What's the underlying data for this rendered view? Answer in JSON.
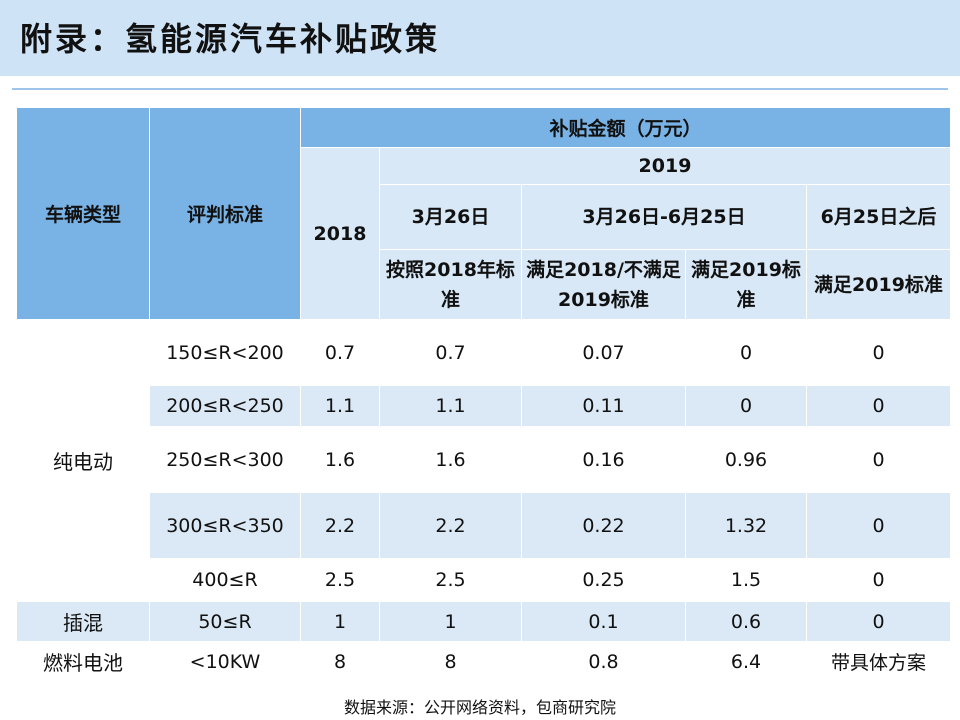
{
  "title": "附录：氢能源汽车补贴政策",
  "headers": {
    "vehicle_type": "车辆类型",
    "criteria": "评判标准",
    "subsidy_amount": "补贴金额（万元）",
    "y2018": "2018",
    "y2019": "2019",
    "mar26": "3月26日",
    "mar26_jun25": "3月26日-6月25日",
    "after_jun25": "6月25日之后",
    "by_2018_std": "按照2018年标准",
    "meets_2018_not_2019": "满足2018/不满足2019标准",
    "meets_2019_std": "满足2019标准",
    "meets_2019_std_b": "满足2019标准"
  },
  "categories": {
    "bev": "纯电动",
    "phev": "插混",
    "fcv": "燃料电池"
  },
  "rows": [
    {
      "criteria": "150≤R<200",
      "y2018": "0.7",
      "mar26": "0.7",
      "transition": "0.07",
      "meets2019": "0",
      "after": "0"
    },
    {
      "criteria": "200≤R<250",
      "y2018": "1.1",
      "mar26": "1.1",
      "transition": "0.11",
      "meets2019": "0",
      "after": "0"
    },
    {
      "criteria": "250≤R<300",
      "y2018": "1.6",
      "mar26": "1.6",
      "transition": "0.16",
      "meets2019": "0.96",
      "after": "0"
    },
    {
      "criteria": "300≤R<350",
      "y2018": "2.2",
      "mar26": "2.2",
      "transition": "0.22",
      "meets2019": "1.32",
      "after": "0"
    },
    {
      "criteria": "400≤R",
      "y2018": "2.5",
      "mar26": "2.5",
      "transition": "0.25",
      "meets2019": "1.5",
      "after": "0"
    },
    {
      "criteria": "50≤R",
      "y2018": "1",
      "mar26": "1",
      "transition": "0.1",
      "meets2019": "0.6",
      "after": "0"
    },
    {
      "criteria": "<10KW",
      "y2018": "8",
      "mar26": "8",
      "transition": "0.8",
      "meets2019": "6.4",
      "after": "带具体方案"
    }
  ],
  "source": "数据来源：公开网络资料，包商研究院",
  "colors": {
    "title_bg": "#cfe3f6",
    "header_dark": "#79b3e6",
    "header_light": "#d9e8f6",
    "row_blue": "#dbe9f6"
  }
}
